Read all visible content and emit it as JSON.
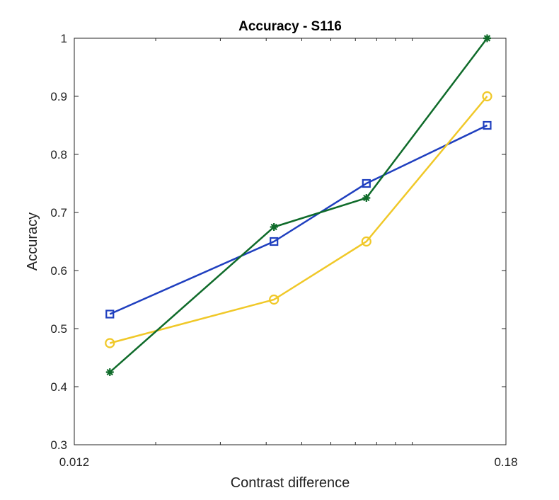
{
  "chart_data": {
    "type": "line",
    "title": "Accuracy - S116",
    "xlabel": "Contrast difference",
    "ylabel": "Accuracy",
    "xscale": "log",
    "xlim": [
      0.012,
      0.18
    ],
    "ylim": [
      0.3,
      1
    ],
    "xticks": [
      "0.012",
      "0.18"
    ],
    "yticks": [
      "0.3",
      "0.4",
      "0.5",
      "0.6",
      "0.7",
      "0.8",
      "0.9",
      "1"
    ],
    "x": [
      0.015,
      0.042,
      0.075,
      0.16
    ],
    "grid": false,
    "series": [
      {
        "marker": "square",
        "color": "#1f3fbf",
        "values": [
          0.525,
          0.65,
          0.75,
          0.85
        ]
      },
      {
        "marker": "circle",
        "color": "#f0c828",
        "values": [
          0.475,
          0.55,
          0.65,
          0.9
        ]
      },
      {
        "marker": "asterisk",
        "color": "#0f6b2a",
        "values": [
          0.425,
          0.675,
          0.725,
          1.0
        ]
      }
    ]
  }
}
